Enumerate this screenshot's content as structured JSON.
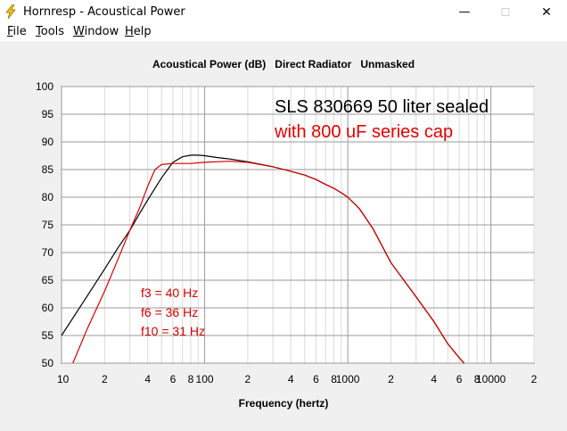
{
  "window": {
    "title": "Hornresp - Acoustical Power",
    "minimize_glyph": "—",
    "maximize_glyph": "☐",
    "close_glyph": "✕",
    "icon": "lightning-bolt-icon",
    "accent": "#f5c400"
  },
  "menu": {
    "items": [
      {
        "label": "File",
        "name": "menu-file"
      },
      {
        "label": "Tools",
        "name": "menu-tools"
      },
      {
        "label": "Window",
        "name": "menu-window"
      },
      {
        "label": "Help",
        "name": "menu-help"
      }
    ]
  },
  "chart_data": {
    "type": "line",
    "title": "Acoustical Power (dB)   Direct Radiator   Unmasked",
    "xlabel": "Frequency (hertz)",
    "x_scale": "log",
    "xlim": [
      10,
      20000
    ],
    "ylim": [
      50,
      100
    ],
    "yticks": [
      50,
      55,
      60,
      65,
      70,
      75,
      80,
      85,
      90,
      95,
      100
    ],
    "xtick_labels": [
      {
        "value": 10,
        "label": "10"
      },
      {
        "value": 20,
        "label": "2"
      },
      {
        "value": 40,
        "label": "4"
      },
      {
        "value": 60,
        "label": "6"
      },
      {
        "value": 80,
        "label": "8"
      },
      {
        "value": 100,
        "label": "100"
      },
      {
        "value": 200,
        "label": "2"
      },
      {
        "value": 400,
        "label": "4"
      },
      {
        "value": 600,
        "label": "6"
      },
      {
        "value": 800,
        "label": "8"
      },
      {
        "value": 1000,
        "label": "1000"
      },
      {
        "value": 2000,
        "label": "2"
      },
      {
        "value": 4000,
        "label": "4"
      },
      {
        "value": 6000,
        "label": "6"
      },
      {
        "value": 8000,
        "label": "8"
      },
      {
        "value": 10000,
        "label": "10000"
      },
      {
        "value": 20000,
        "label": "2"
      }
    ],
    "grid": true,
    "annotations": [
      {
        "text": "SLS 830669 50 liter sealed",
        "color": "#000000"
      },
      {
        "text": "with 800 uF series cap",
        "color": "#e00000"
      }
    ],
    "notes": [
      "f3 = 40 Hz",
      "f6 = 36 Hz",
      "f10 = 31 Hz"
    ],
    "notes_color": "#d00000",
    "series": [
      {
        "color": "#000000",
        "x": [
          10,
          15,
          20,
          25,
          30,
          35,
          40,
          50,
          60,
          70,
          80,
          90,
          100,
          120,
          150,
          200,
          300,
          400,
          500,
          600,
          700,
          800,
          900,
          1000,
          1200,
          1500,
          2000,
          3000,
          4000,
          5000,
          6000,
          6500
        ],
        "y": [
          55,
          62,
          67,
          71,
          74,
          77,
          79.5,
          83.5,
          86.3,
          87.3,
          87.6,
          87.6,
          87.5,
          87.2,
          86.9,
          86.4,
          85.5,
          84.7,
          84,
          83.2,
          82.3,
          81.6,
          80.8,
          80,
          78,
          74.3,
          68.2,
          62,
          57.5,
          53.5,
          51,
          50
        ]
      },
      {
        "color": "#d00000",
        "x": [
          12,
          15,
          20,
          25,
          30,
          35,
          40,
          45,
          50,
          60,
          70,
          80,
          100,
          150,
          200,
          300,
          400,
          500,
          600,
          700,
          800,
          900,
          1000,
          1200,
          1500,
          2000,
          3000,
          4000,
          5000,
          6000,
          6500
        ],
        "y": [
          50,
          56,
          63,
          69,
          74,
          78,
          82,
          85,
          85.9,
          86.1,
          86.1,
          86.1,
          86.3,
          86.5,
          86.3,
          85.5,
          84.7,
          84,
          83.2,
          82.3,
          81.6,
          80.8,
          80,
          78,
          74.3,
          68.2,
          62,
          57.5,
          53.5,
          51,
          50
        ]
      }
    ]
  }
}
